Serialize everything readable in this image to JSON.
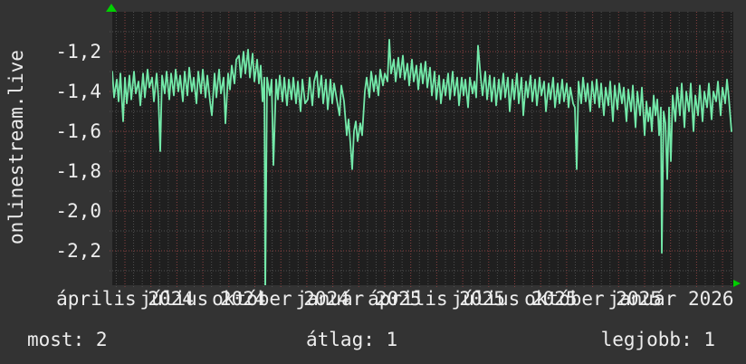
{
  "app": {
    "vertical_label": "onlinestream.live"
  },
  "footer": {
    "items": [
      "most: 2",
      "átlag: 1",
      "legjobb: 1"
    ]
  },
  "icons": {
    "up_arrow": "green-up-arrow",
    "right_arrow": "green-right-arrow"
  },
  "colors": {
    "background": "#333333",
    "plot_background": "#1f1f1f",
    "grid_minor": "#4f4f4f",
    "grid_major": "#8a4141",
    "line": "#73e9a9",
    "arrow": "#00cf00",
    "text": "#ededed"
  },
  "chart_data": {
    "type": "line",
    "title": "",
    "xlabel": "",
    "ylabel": "onlinestream.live",
    "grid": true,
    "legend_position": "none",
    "decimal_style": "comma",
    "ylim": [
      -2.37,
      -1.0
    ],
    "y_ticks": [
      "-1,2",
      "-1,4",
      "-1,6",
      "-1,8",
      "-2,0",
      "-2,2"
    ],
    "y_tick_values": [
      -1.2,
      -1.4,
      -1.6,
      -1.8,
      -2.0,
      -2.2
    ],
    "x_tick_labels": [
      "április 2024",
      "július 2024",
      "október 2024",
      "január 2025",
      "április 2025",
      "július 2025",
      "október 2025",
      "január 2026"
    ],
    "stats": {
      "most": 2,
      "atlag": 1,
      "legjobb": 1
    },
    "series": [
      {
        "name": "onlinestream.live",
        "color": "#73e9a9",
        "points": [
          [
            0,
            -1.3
          ],
          [
            2,
            -1.43
          ],
          [
            5,
            -1.34
          ],
          [
            7,
            -1.45
          ],
          [
            9,
            -1.31
          ],
          [
            12,
            -1.55
          ],
          [
            14,
            -1.33
          ],
          [
            16,
            -1.46
          ],
          [
            19,
            -1.32
          ],
          [
            21,
            -1.44
          ],
          [
            24,
            -1.3
          ],
          [
            26,
            -1.41
          ],
          [
            29,
            -1.35
          ],
          [
            31,
            -1.47
          ],
          [
            34,
            -1.31
          ],
          [
            36,
            -1.43
          ],
          [
            39,
            -1.29
          ],
          [
            41,
            -1.38
          ],
          [
            44,
            -1.33
          ],
          [
            46,
            -1.45
          ],
          [
            49,
            -1.31
          ],
          [
            51,
            -1.43
          ],
          [
            53,
            -1.7
          ],
          [
            55,
            -1.32
          ],
          [
            58,
            -1.41
          ],
          [
            60,
            -1.3
          ],
          [
            63,
            -1.44
          ],
          [
            65,
            -1.31
          ],
          [
            68,
            -1.42
          ],
          [
            70,
            -1.29
          ],
          [
            73,
            -1.4
          ],
          [
            75,
            -1.32
          ],
          [
            78,
            -1.45
          ],
          [
            80,
            -1.3
          ],
          [
            83,
            -1.42
          ],
          [
            85,
            -1.28
          ],
          [
            88,
            -1.4
          ],
          [
            90,
            -1.33
          ],
          [
            93,
            -1.46
          ],
          [
            95,
            -1.3
          ],
          [
            98,
            -1.41
          ],
          [
            100,
            -1.29
          ],
          [
            103,
            -1.43
          ],
          [
            105,
            -1.32
          ],
          [
            108,
            -1.45
          ],
          [
            110,
            -1.52
          ],
          [
            113,
            -1.31
          ],
          [
            115,
            -1.43
          ],
          [
            118,
            -1.29
          ],
          [
            120,
            -1.41
          ],
          [
            123,
            -1.33
          ],
          [
            125,
            -1.56
          ],
          [
            128,
            -1.31
          ],
          [
            130,
            -1.39
          ],
          [
            132,
            -1.27
          ],
          [
            135,
            -1.36
          ],
          [
            137,
            -1.24
          ],
          [
            140,
            -1.22
          ],
          [
            142,
            -1.33
          ],
          [
            145,
            -1.2
          ],
          [
            147,
            -1.31
          ],
          [
            150,
            -1.19
          ],
          [
            152,
            -1.33
          ],
          [
            155,
            -1.21
          ],
          [
            157,
            -1.35
          ],
          [
            160,
            -1.24
          ],
          [
            162,
            -1.36
          ],
          [
            164,
            -1.27
          ],
          [
            166,
            -1.45
          ],
          [
            168,
            -1.33
          ],
          [
            169,
            -2.42
          ],
          [
            171,
            -1.33
          ],
          [
            174,
            -1.42
          ],
          [
            176,
            -1.34
          ],
          [
            178,
            -1.77
          ],
          [
            181,
            -1.34
          ],
          [
            183,
            -1.44
          ],
          [
            185,
            -1.32
          ],
          [
            188,
            -1.45
          ],
          [
            190,
            -1.33
          ],
          [
            193,
            -1.47
          ],
          [
            195,
            -1.34
          ],
          [
            198,
            -1.44
          ],
          [
            200,
            -1.33
          ],
          [
            203,
            -1.46
          ],
          [
            205,
            -1.35
          ],
          [
            208,
            -1.5
          ],
          [
            210,
            -1.34
          ],
          [
            213,
            -1.46
          ],
          [
            216,
            -1.44
          ],
          [
            218,
            -1.33
          ],
          [
            221,
            -1.47
          ],
          [
            223,
            -1.35
          ],
          [
            226,
            -1.3
          ],
          [
            228,
            -1.43
          ],
          [
            231,
            -1.32
          ],
          [
            233,
            -1.46
          ],
          [
            236,
            -1.34
          ],
          [
            238,
            -1.49
          ],
          [
            241,
            -1.34
          ],
          [
            243,
            -1.46
          ],
          [
            245,
            -1.36
          ],
          [
            248,
            -1.44
          ],
          [
            251,
            -1.52
          ],
          [
            253,
            -1.37
          ],
          [
            256,
            -1.45
          ],
          [
            259,
            -1.62
          ],
          [
            261,
            -1.54
          ],
          [
            263,
            -1.66
          ],
          [
            265,
            -1.79
          ],
          [
            267,
            -1.6
          ],
          [
            269,
            -1.55
          ],
          [
            271,
            -1.65
          ],
          [
            274,
            -1.56
          ],
          [
            276,
            -1.62
          ],
          [
            279,
            -1.4
          ],
          [
            281,
            -1.33
          ],
          [
            284,
            -1.43
          ],
          [
            286,
            -1.3
          ],
          [
            289,
            -1.4
          ],
          [
            291,
            -1.32
          ],
          [
            294,
            -1.42
          ],
          [
            296,
            -1.29
          ],
          [
            299,
            -1.37
          ],
          [
            301,
            -1.31
          ],
          [
            304,
            -1.35
          ],
          [
            306,
            -1.14
          ],
          [
            308,
            -1.31
          ],
          [
            311,
            -1.24
          ],
          [
            313,
            -1.35
          ],
          [
            316,
            -1.23
          ],
          [
            318,
            -1.33
          ],
          [
            321,
            -1.22
          ],
          [
            323,
            -1.34
          ],
          [
            326,
            -1.26
          ],
          [
            328,
            -1.37
          ],
          [
            331,
            -1.24
          ],
          [
            333,
            -1.35
          ],
          [
            336,
            -1.27
          ],
          [
            338,
            -1.39
          ],
          [
            341,
            -1.26
          ],
          [
            343,
            -1.36
          ],
          [
            346,
            -1.25
          ],
          [
            348,
            -1.38
          ],
          [
            351,
            -1.28
          ],
          [
            353,
            -1.42
          ],
          [
            356,
            -1.3
          ],
          [
            358,
            -1.44
          ],
          [
            361,
            -1.32
          ],
          [
            363,
            -1.46
          ],
          [
            366,
            -1.34
          ],
          [
            368,
            -1.42
          ],
          [
            371,
            -1.31
          ],
          [
            373,
            -1.44
          ],
          [
            376,
            -1.3
          ],
          [
            378,
            -1.42
          ],
          [
            381,
            -1.33
          ],
          [
            383,
            -1.47
          ],
          [
            386,
            -1.33
          ],
          [
            388,
            -1.42
          ],
          [
            390,
            -1.34
          ],
          [
            393,
            -1.48
          ],
          [
            395,
            -1.33
          ],
          [
            398,
            -1.41
          ],
          [
            400,
            -1.35
          ],
          [
            402,
            -1.43
          ],
          [
            404,
            -1.17
          ],
          [
            407,
            -1.33
          ],
          [
            409,
            -1.42
          ],
          [
            412,
            -1.3
          ],
          [
            414,
            -1.44
          ],
          [
            417,
            -1.32
          ],
          [
            419,
            -1.45
          ],
          [
            422,
            -1.33
          ],
          [
            424,
            -1.47
          ],
          [
            427,
            -1.34
          ],
          [
            429,
            -1.44
          ],
          [
            432,
            -1.31
          ],
          [
            434,
            -1.43
          ],
          [
            437,
            -1.33
          ],
          [
            439,
            -1.5
          ],
          [
            442,
            -1.34
          ],
          [
            444,
            -1.44
          ],
          [
            447,
            -1.31
          ],
          [
            449,
            -1.46
          ],
          [
            452,
            -1.33
          ],
          [
            454,
            -1.52
          ],
          [
            457,
            -1.35
          ],
          [
            459,
            -1.43
          ],
          [
            462,
            -1.32
          ],
          [
            464,
            -1.45
          ],
          [
            467,
            -1.34
          ],
          [
            469,
            -1.47
          ],
          [
            472,
            -1.33
          ],
          [
            474,
            -1.42
          ],
          [
            477,
            -1.35
          ],
          [
            479,
            -1.5
          ],
          [
            482,
            -1.36
          ],
          [
            484,
            -1.44
          ],
          [
            487,
            -1.33
          ],
          [
            489,
            -1.48
          ],
          [
            492,
            -1.36
          ],
          [
            494,
            -1.46
          ],
          [
            497,
            -1.34
          ],
          [
            499,
            -1.45
          ],
          [
            502,
            -1.36
          ],
          [
            504,
            -1.48
          ],
          [
            506,
            -1.38
          ],
          [
            509,
            -1.46
          ],
          [
            511,
            -1.48
          ],
          [
            513,
            -1.79
          ],
          [
            515,
            -1.35
          ],
          [
            518,
            -1.46
          ],
          [
            520,
            -1.33
          ],
          [
            523,
            -1.45
          ],
          [
            525,
            -1.36
          ],
          [
            528,
            -1.5
          ],
          [
            530,
            -1.35
          ],
          [
            533,
            -1.46
          ],
          [
            535,
            -1.34
          ],
          [
            538,
            -1.48
          ],
          [
            540,
            -1.36
          ],
          [
            543,
            -1.52
          ],
          [
            545,
            -1.38
          ],
          [
            548,
            -1.47
          ],
          [
            550,
            -1.35
          ],
          [
            553,
            -1.55
          ],
          [
            555,
            -1.37
          ],
          [
            558,
            -1.49
          ],
          [
            560,
            -1.36
          ],
          [
            563,
            -1.46
          ],
          [
            565,
            -1.38
          ],
          [
            568,
            -1.55
          ],
          [
            570,
            -1.39
          ],
          [
            573,
            -1.5
          ],
          [
            575,
            -1.37
          ],
          [
            578,
            -1.58
          ],
          [
            580,
            -1.4
          ],
          [
            583,
            -1.52
          ],
          [
            585,
            -1.38
          ],
          [
            588,
            -1.62
          ],
          [
            590,
            -1.45
          ],
          [
            592,
            -1.55
          ],
          [
            594,
            -1.48
          ],
          [
            596,
            -1.6
          ],
          [
            598,
            -1.42
          ],
          [
            600,
            -1.52
          ],
          [
            602,
            -1.44
          ],
          [
            604,
            -1.62
          ],
          [
            606,
            -1.48
          ],
          [
            607,
            -2.21
          ],
          [
            609,
            -1.5
          ],
          [
            611,
            -1.56
          ],
          [
            613,
            -1.84
          ],
          [
            615,
            -1.48
          ],
          [
            617,
            -1.75
          ],
          [
            619,
            -1.42
          ],
          [
            622,
            -1.55
          ],
          [
            624,
            -1.38
          ],
          [
            627,
            -1.52
          ],
          [
            629,
            -1.36
          ],
          [
            632,
            -1.58
          ],
          [
            634,
            -1.4
          ],
          [
            637,
            -1.5
          ],
          [
            639,
            -1.36
          ],
          [
            642,
            -1.6
          ],
          [
            644,
            -1.42
          ],
          [
            647,
            -1.52
          ],
          [
            649,
            -1.37
          ],
          [
            652,
            -1.55
          ],
          [
            654,
            -1.4
          ],
          [
            657,
            -1.48
          ],
          [
            659,
            -1.36
          ],
          [
            662,
            -1.54
          ],
          [
            664,
            -1.4
          ],
          [
            667,
            -1.45
          ],
          [
            669,
            -1.35
          ],
          [
            672,
            -1.52
          ],
          [
            674,
            -1.38
          ],
          [
            677,
            -1.46
          ],
          [
            679,
            -1.34
          ],
          [
            681,
            -1.43
          ],
          [
            684,
            -1.6
          ]
        ]
      }
    ]
  }
}
